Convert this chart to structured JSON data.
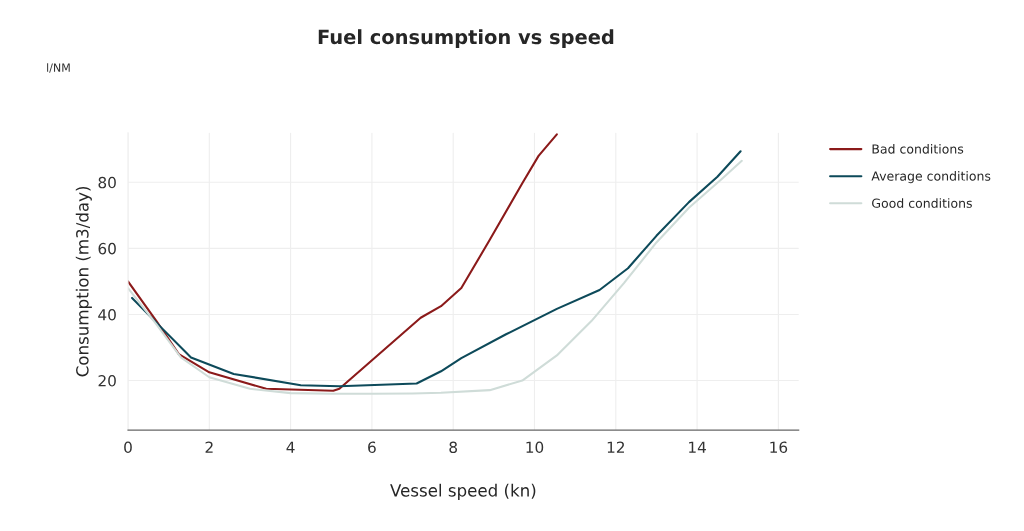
{
  "chart_data": {
    "type": "line",
    "title": "Fuel consumption vs speed",
    "xlabel": "Vessel speed (kn)",
    "ylabel": "Consumption (m3/day)",
    "annotations": [
      "l/NM"
    ],
    "xlim": [
      0,
      16.5
    ],
    "ylim": [
      5,
      95
    ],
    "xticks": [
      0,
      2,
      4,
      6,
      8,
      10,
      12,
      14,
      16
    ],
    "yticks": [
      20,
      40,
      60,
      80
    ],
    "grid": true,
    "legend": "right",
    "marker": "none",
    "line_style": "solid",
    "series": [
      {
        "name": "Bad conditions",
        "color": "#8b1a1a",
        "x": [
          0,
          0.7,
          1.25,
          2.0,
          3.4,
          5.05,
          5.2,
          7.2,
          7.7,
          8.2,
          8.9,
          9.7,
          10.1,
          10.55
        ],
        "values": [
          50,
          38,
          28,
          22.5,
          17.5,
          16.9,
          17.5,
          39,
          42.5,
          48,
          62.6,
          79.7,
          88,
          94.5
        ]
      },
      {
        "name": "Average conditions",
        "color": "#0d4a5a",
        "x": [
          0.1,
          0.74,
          1.55,
          2.6,
          4.25,
          5.2,
          7.1,
          7.7,
          8.2,
          9.3,
          10.55,
          11.6,
          12.3,
          13.0,
          13.8,
          14.5,
          15.07
        ],
        "values": [
          45,
          37,
          27,
          22,
          18.6,
          18.3,
          19.1,
          22.8,
          26.8,
          34,
          41.7,
          47.4,
          54,
          63.8,
          74,
          81.7,
          89.4
        ]
      },
      {
        "name": "Good conditions",
        "color": "#cfdcd8",
        "x": [
          0,
          0.7,
          1.3,
          2,
          3,
          4,
          5,
          6,
          7,
          7.7,
          8.9,
          9.7,
          10.55,
          11.4,
          12.2,
          13.0,
          13.8,
          14.6,
          15.1
        ],
        "values": [
          48,
          37,
          27,
          21,
          17.5,
          16.2,
          16,
          16,
          16.1,
          16.3,
          17.1,
          20,
          27.6,
          38,
          49.5,
          61.8,
          72.3,
          80.9,
          86.5
        ]
      }
    ]
  }
}
